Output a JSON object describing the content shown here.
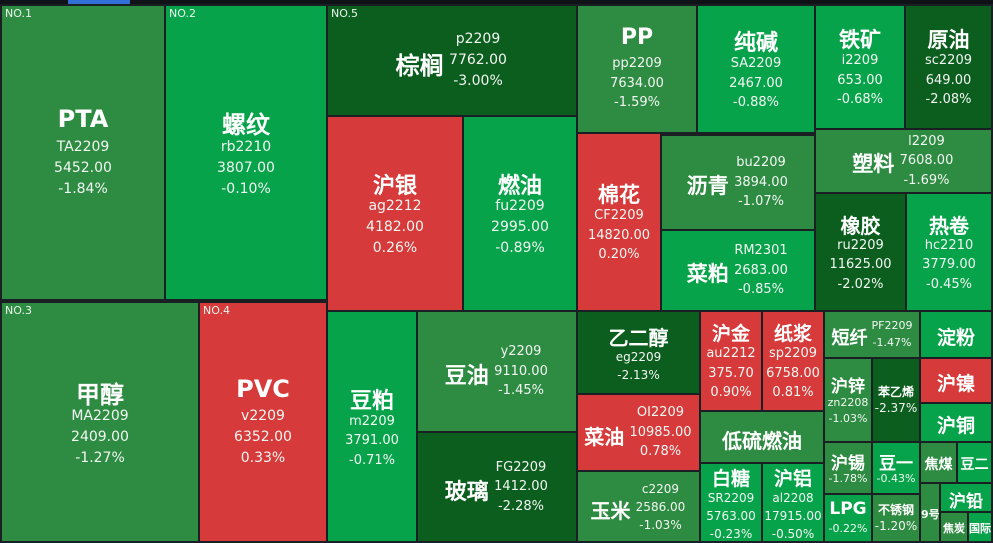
{
  "chart_data": {
    "type": "treemap",
    "colors": {
      "up": "#d63a3a",
      "down_light": "#07a34a",
      "down_mid": "#2e8b42",
      "down_dark": "#0c5e1e"
    },
    "tiles": [
      {
        "name": "PTA",
        "code": "TA2209",
        "price": "5452.00",
        "change": "-1.84%",
        "pct": -1.84,
        "rank": "NO.1"
      },
      {
        "name": "螺纹",
        "code": "rb2210",
        "price": "3807.00",
        "change": "-0.10%",
        "pct": -0.1,
        "rank": "NO.2"
      },
      {
        "name": "甲醇",
        "code": "MA2209",
        "price": "2409.00",
        "change": "-1.27%",
        "pct": -1.27,
        "rank": "NO.3"
      },
      {
        "name": "PVC",
        "code": "v2209",
        "price": "6352.00",
        "change": "0.33%",
        "pct": 0.33,
        "rank": "NO.4"
      },
      {
        "name": "棕榈",
        "code": "p2209",
        "price": "7762.00",
        "change": "-3.00%",
        "pct": -3.0,
        "rank": "NO.5"
      },
      {
        "name": "沪银",
        "code": "ag2212",
        "price": "4182.00",
        "change": "0.26%",
        "pct": 0.26
      },
      {
        "name": "燃油",
        "code": "fu2209",
        "price": "2995.00",
        "change": "-0.89%",
        "pct": -0.89
      },
      {
        "name": "豆粕",
        "code": "m2209",
        "price": "3791.00",
        "change": "-0.71%",
        "pct": -0.71
      },
      {
        "name": "豆油",
        "code": "y2209",
        "price": "9110.00",
        "change": "-1.45%",
        "pct": -1.45
      },
      {
        "name": "玻璃",
        "code": "FG2209",
        "price": "1412.00",
        "change": "-2.28%",
        "pct": -2.28
      },
      {
        "name": "PP",
        "code": "pp2209",
        "price": "7634.00",
        "change": "-1.59%",
        "pct": -1.59
      },
      {
        "name": "纯碱",
        "code": "SA2209",
        "price": "2467.00",
        "change": "-0.88%",
        "pct": -0.88
      },
      {
        "name": "铁矿",
        "code": "i2209",
        "price": "653.00",
        "change": "-0.68%",
        "pct": -0.68
      },
      {
        "name": "原油",
        "code": "sc2209",
        "price": "649.00",
        "change": "-2.08%",
        "pct": -2.08
      },
      {
        "name": "棉花",
        "code": "CF2209",
        "price": "14820.00",
        "change": "0.20%",
        "pct": 0.2
      },
      {
        "name": "沥青",
        "code": "bu2209",
        "price": "3894.00",
        "change": "-1.07%",
        "pct": -1.07
      },
      {
        "name": "塑料",
        "code": "l2209",
        "price": "7608.00",
        "change": "-1.69%",
        "pct": -1.69
      },
      {
        "name": "菜粕",
        "code": "RM2301",
        "price": "2683.00",
        "change": "-0.85%",
        "pct": -0.85
      },
      {
        "name": "橡胶",
        "code": "ru2209",
        "price": "11625.00",
        "change": "-2.02%",
        "pct": -2.02
      },
      {
        "name": "热卷",
        "code": "hc2210",
        "price": "3779.00",
        "change": "-0.45%",
        "pct": -0.45
      },
      {
        "name": "乙二醇",
        "code": "eg2209",
        "price": "",
        "change": "-2.13%",
        "pct": -2.13
      },
      {
        "name": "菜油",
        "code": "OI2209",
        "price": "10985.00",
        "change": "0.78%",
        "pct": 0.78
      },
      {
        "name": "玉米",
        "code": "c2209",
        "price": "2586.00",
        "change": "-1.03%",
        "pct": -1.03
      },
      {
        "name": "沪金",
        "code": "au2212",
        "price": "375.70",
        "change": "0.90%",
        "pct": 0.9
      },
      {
        "name": "纸浆",
        "code": "sp2209",
        "price": "6758.00",
        "change": "0.81%",
        "pct": 0.81
      },
      {
        "name": "低硫燃油",
        "code": "",
        "price": "",
        "change": "",
        "pct": -1.0
      },
      {
        "name": "白糖",
        "code": "SR2209",
        "price": "5763.00",
        "change": "-0.23%",
        "pct": -0.23
      },
      {
        "name": "沪铝",
        "code": "al2208",
        "price": "17915.00",
        "change": "-0.50%",
        "pct": -0.5
      },
      {
        "name": "短纤",
        "code": "PF2209",
        "price": "",
        "change": "-1.47%",
        "pct": -1.47
      },
      {
        "name": "沪锌",
        "code": "zn2208",
        "price": "",
        "change": "-1.03%",
        "pct": -1.03
      },
      {
        "name": "苯乙烯",
        "code": "",
        "price": "",
        "change": "-2.37%",
        "pct": -2.37
      },
      {
        "name": "沪锡",
        "code": "",
        "price": "",
        "change": "-1.78%",
        "pct": -1.78
      },
      {
        "name": "豆一",
        "code": "",
        "price": "",
        "change": "-0.43%",
        "pct": -0.43
      },
      {
        "name": "LPG",
        "code": "",
        "price": "",
        "change": "-0.22%",
        "pct": -0.22
      },
      {
        "name": "不锈钢",
        "code": "",
        "price": "",
        "change": "-1.20%",
        "pct": -1.2
      },
      {
        "name": "淀粉",
        "code": "",
        "price": "",
        "change": "",
        "pct": -0.6
      },
      {
        "name": "沪镍",
        "code": "",
        "price": "",
        "change": "",
        "pct": 0.3
      },
      {
        "name": "沪铜",
        "code": "",
        "price": "",
        "change": "",
        "pct": -0.4
      },
      {
        "name": "焦煤",
        "code": "",
        "price": "",
        "change": "",
        "pct": -1.5
      },
      {
        "name": "豆二",
        "code": "",
        "price": "",
        "change": "",
        "pct": -0.3
      },
      {
        "name": "沪铅",
        "code": "",
        "price": "",
        "change": "",
        "pct": -0.5
      },
      {
        "name": "9号",
        "code": "",
        "price": "",
        "change": "",
        "pct": -1.0
      },
      {
        "name": "焦炭",
        "code": "",
        "price": "",
        "change": "",
        "pct": -1.0
      },
      {
        "name": "国际铜",
        "code": "",
        "price": "",
        "change": "",
        "pct": -0.5
      }
    ]
  }
}
